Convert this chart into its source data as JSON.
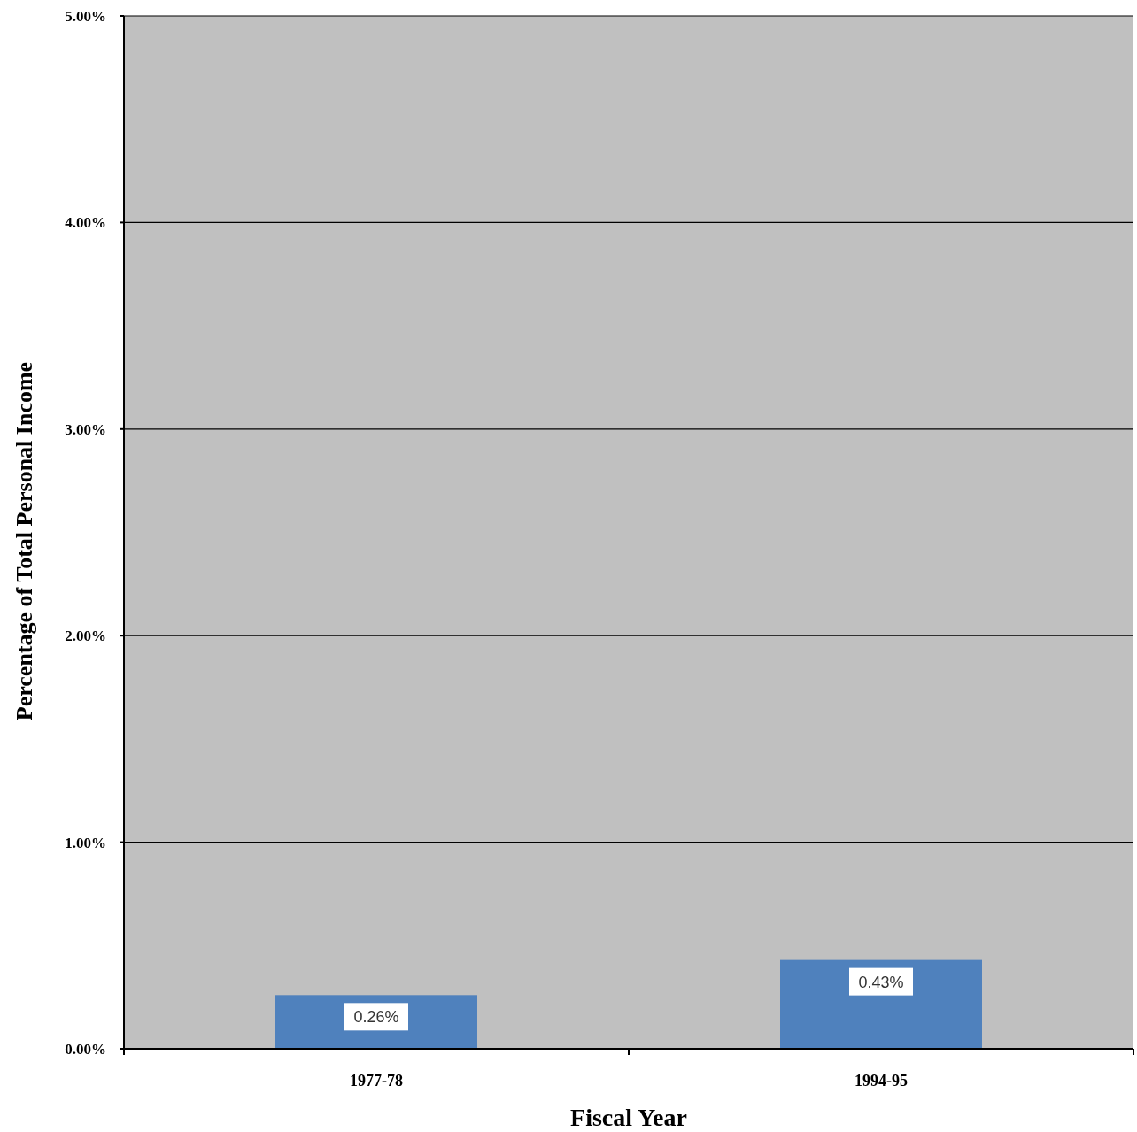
{
  "chart_data": {
    "type": "bar",
    "xlabel": "Fiscal Year",
    "ylabel": "Percentage of Total Personal Income",
    "categories": [
      "1977-78",
      "1994-95"
    ],
    "values": [
      0.26,
      0.43
    ],
    "value_labels": [
      "0.26%",
      "0.43%"
    ],
    "color": "#4f81bd",
    "ylim": [
      0,
      5
    ],
    "yticks": [
      {
        "value": 0,
        "label": "0.00%"
      },
      {
        "value": 1,
        "label": "1.00%"
      },
      {
        "value": 2,
        "label": "2.00%"
      },
      {
        "value": 3,
        "label": "3.00%"
      },
      {
        "value": 4,
        "label": "4.00%"
      },
      {
        "value": 5,
        "label": "5.00%"
      }
    ],
    "grid": "y"
  }
}
